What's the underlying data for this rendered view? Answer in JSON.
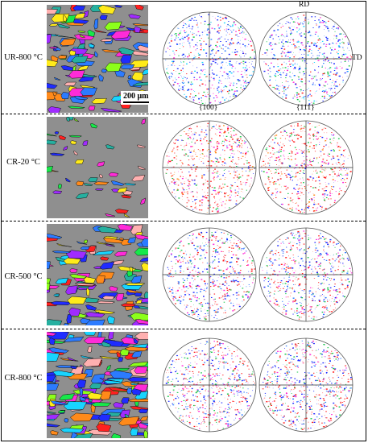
{
  "rows": [
    {
      "label": "UR-800 °C"
    },
    {
      "label": "CR-20 °C"
    },
    {
      "label": "CR-500 °C"
    },
    {
      "label": "CR-800 °C"
    }
  ],
  "scale_bar": "200 μm",
  "pole_figures": {
    "left": "{100}",
    "right": "{111}"
  },
  "axes": {
    "rd": "RD",
    "td": "TD"
  },
  "colors": {
    "map_background": "#8f8f8f",
    "grain_palette": [
      "#1f2cff",
      "#2c7bff",
      "#18d4ff",
      "#17e84a",
      "#8cff1a",
      "#ffeb1a",
      "#ff8a1a",
      "#ff2020",
      "#ff2bd8",
      "#a02bff",
      "#ffb0b0",
      "#26b0a0"
    ]
  }
}
